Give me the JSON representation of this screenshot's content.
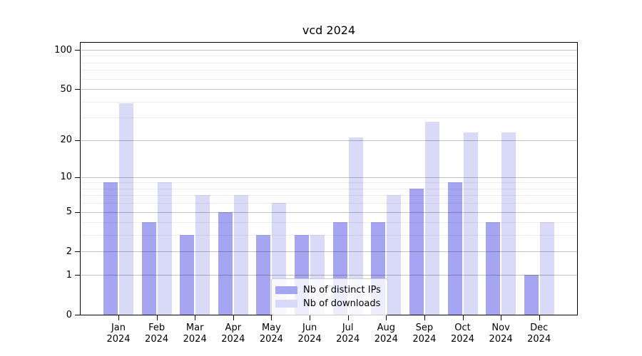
{
  "chart_data": {
    "type": "bar",
    "title": "vcd 2024",
    "categories": [
      "Jan 2024",
      "Feb 2024",
      "Mar 2024",
      "Apr 2024",
      "May 2024",
      "Jun 2024",
      "Jul 2024",
      "Aug 2024",
      "Sep 2024",
      "Oct 2024",
      "Nov 2024",
      "Dec 2024"
    ],
    "series": [
      {
        "name": "Nb of distinct IPs",
        "color": "#a5a5f2",
        "values": [
          9,
          4,
          3,
          5,
          3,
          3,
          4,
          4,
          8,
          9,
          4,
          1
        ]
      },
      {
        "name": "Nb of downloads",
        "color": "#d9d9f8",
        "values": [
          39,
          9,
          7,
          7,
          6,
          3,
          21,
          7,
          28,
          23,
          23,
          4
        ]
      }
    ],
    "xlabel": "",
    "ylabel": "",
    "yscale": "log1p",
    "ylim": [
      0,
      116
    ],
    "y_major_ticks": [
      0,
      1,
      2,
      5,
      10,
      20,
      50,
      100
    ],
    "y_minor_gridlines": [
      3,
      4,
      6,
      7,
      8,
      9,
      30,
      40,
      60,
      70,
      80,
      90
    ],
    "grid": "horizontal, major and minor",
    "legend_position": "lower center, inside axes"
  }
}
